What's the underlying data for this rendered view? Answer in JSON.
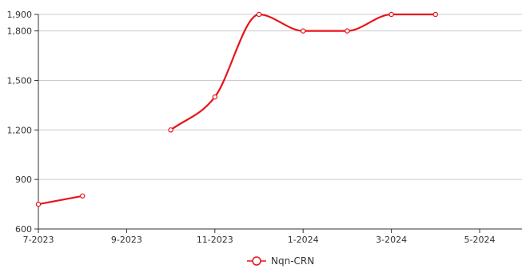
{
  "chart_data": {
    "type": "line",
    "title": "",
    "xlabel": "",
    "ylabel": "",
    "x_ticks": [
      "7-2023",
      "9-2023",
      "11-2023",
      "1-2024",
      "3-2024",
      "5-2024"
    ],
    "y_ticks": [
      "600",
      "900",
      "1,200",
      "1,500",
      "1,800",
      "1,900"
    ],
    "ylim": [
      600,
      1900
    ],
    "xlim": [
      "2023-07",
      "2024-06"
    ],
    "grid": "horizontal",
    "legend_position": "bottom",
    "series": [
      {
        "name": "Nqn-CRN",
        "color": "#e8141b",
        "smooth": true,
        "segments": [
          [
            {
              "x": "2023-07",
              "y": 750
            },
            {
              "x": "2023-08",
              "y": 800
            }
          ],
          [
            {
              "x": "2023-10",
              "y": 1200
            },
            {
              "x": "2023-11",
              "y": 1400
            },
            {
              "x": "2023-12",
              "y": 1900
            },
            {
              "x": "2024-01",
              "y": 1800
            },
            {
              "x": "2024-02",
              "y": 1800
            },
            {
              "x": "2024-03",
              "y": 1900
            },
            {
              "x": "2024-04",
              "y": 1900
            }
          ]
        ]
      }
    ]
  }
}
